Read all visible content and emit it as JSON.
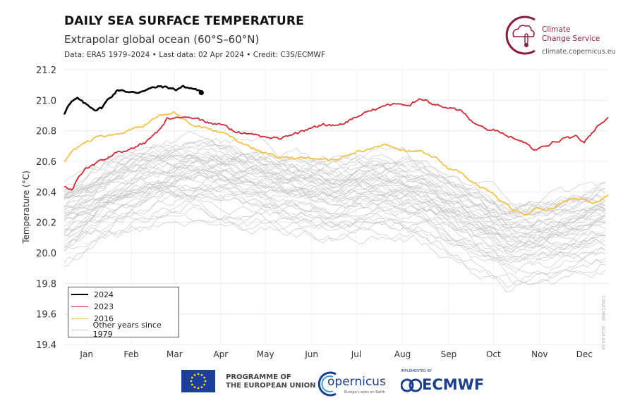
{
  "header": {
    "title": "DAILY SEA SURFACE TEMPERATURE",
    "subtitle": "Extrapolar global ocean (60°S–60°N)",
    "meta": "Data: ERA5 1979–2024 • Last data: 02 Apr 2024 • Credit: C3S/ECMWF"
  },
  "brand": {
    "name_line1": "Climate",
    "name_line2": "Change Service",
    "url": "climate.copernicus.eu"
  },
  "footer": {
    "eu_line1": "PROGRAMME OF",
    "eu_line2": "THE EUROPEAN UNION",
    "copernicus": "opernicus",
    "copernicus_tag": "Europe's eyes on Earth",
    "ecmwf_small": "IMPLEMENTED BY",
    "ecmwf": "ECMWF"
  },
  "side_note": "C3S/ECMWF · 2024-04-04",
  "chart_data": {
    "type": "line",
    "ylabel": "Temperature (°C)",
    "xlabel": "",
    "ylim": [
      19.4,
      21.2
    ],
    "yticks": [
      19.4,
      19.6,
      19.8,
      20.0,
      20.2,
      20.4,
      20.6,
      20.8,
      21.0,
      21.2
    ],
    "xlim": [
      1,
      366
    ],
    "months": [
      {
        "label": "Jan",
        "day": 16
      },
      {
        "label": "Feb",
        "day": 46
      },
      {
        "label": "Mar",
        "day": 75
      },
      {
        "label": "Apr",
        "day": 106
      },
      {
        "label": "May",
        "day": 136
      },
      {
        "label": "Jun",
        "day": 167
      },
      {
        "label": "Jul",
        "day": 197
      },
      {
        "label": "Aug",
        "day": 228
      },
      {
        "label": "Sep",
        "day": 259
      },
      {
        "label": "Oct",
        "day": 289
      },
      {
        "label": "Nov",
        "day": 320
      },
      {
        "label": "Dec",
        "day": 350
      }
    ],
    "grid": true,
    "legend_position": "bottom-left",
    "series": [
      {
        "name": "2024",
        "color": "#000000",
        "width": 2.6,
        "x": [
          1,
          3,
          6,
          10,
          14,
          18,
          22,
          26,
          30,
          33,
          36,
          40,
          45,
          50,
          55,
          60,
          66,
          72,
          76,
          80,
          85,
          90,
          93
        ],
        "y": [
          20.91,
          20.96,
          20.99,
          21.01,
          20.98,
          20.96,
          20.94,
          20.95,
          21.0,
          21.03,
          21.06,
          21.07,
          21.05,
          21.05,
          21.07,
          21.08,
          21.09,
          21.08,
          21.07,
          21.09,
          21.08,
          21.07,
          21.05
        ]
      },
      {
        "name": "2023",
        "color": "#cc2a36",
        "width": 1.8,
        "x": [
          1,
          6,
          15,
          25,
          35,
          45,
          55,
          65,
          70,
          78,
          85,
          95,
          105,
          115,
          125,
          135,
          145,
          155,
          165,
          175,
          185,
          195,
          205,
          215,
          225,
          233,
          240,
          250,
          258,
          268,
          275,
          285,
          292,
          300,
          308,
          316,
          323,
          330,
          338,
          345,
          350,
          358,
          366
        ],
        "y": [
          20.43,
          20.42,
          20.55,
          20.6,
          20.65,
          20.68,
          20.72,
          20.8,
          20.88,
          20.88,
          20.89,
          20.86,
          20.84,
          20.8,
          20.78,
          20.76,
          20.75,
          20.78,
          20.81,
          20.84,
          20.83,
          20.88,
          20.93,
          20.96,
          20.98,
          20.97,
          21.01,
          20.97,
          20.95,
          20.93,
          20.86,
          20.81,
          20.8,
          20.76,
          20.73,
          20.68,
          20.7,
          20.73,
          20.75,
          20.76,
          20.73,
          20.82,
          20.88
        ]
      },
      {
        "name": "2016",
        "color": "#f5c14b",
        "width": 1.8,
        "x": [
          1,
          6,
          14,
          22,
          30,
          38,
          45,
          52,
          60,
          66,
          70,
          75,
          80,
          87,
          95,
          105,
          115,
          125,
          135,
          145,
          155,
          165,
          175,
          185,
          195,
          205,
          215,
          222,
          230,
          240,
          250,
          258,
          265,
          272,
          280,
          288,
          295,
          303,
          310,
          318,
          325,
          333,
          340,
          348,
          355,
          361,
          366
        ],
        "y": [
          20.6,
          20.66,
          20.72,
          20.75,
          20.77,
          20.78,
          20.8,
          20.82,
          20.87,
          20.91,
          20.9,
          20.92,
          20.89,
          20.84,
          20.82,
          20.79,
          20.75,
          20.7,
          20.66,
          20.63,
          20.62,
          20.62,
          20.61,
          20.62,
          20.66,
          20.68,
          20.71,
          20.7,
          20.67,
          20.67,
          20.62,
          20.56,
          20.54,
          20.48,
          20.43,
          20.39,
          20.33,
          20.28,
          20.25,
          20.29,
          20.28,
          20.32,
          20.35,
          20.36,
          20.33,
          20.34,
          20.38
        ]
      },
      {
        "name": "Other years since 1979",
        "color": "#c7c7c7",
        "width": 0.8,
        "x": [
          1,
          30,
          60,
          90,
          120,
          150,
          180,
          210,
          240,
          270,
          300,
          330,
          366
        ],
        "y": [
          20.2,
          20.34,
          20.44,
          20.48,
          20.44,
          20.38,
          20.34,
          20.36,
          20.33,
          20.2,
          20.06,
          20.09,
          20.18
        ]
      }
    ],
    "other_years": {
      "count": 44,
      "base_x": [
        1,
        30,
        60,
        90,
        120,
        150,
        180,
        210,
        240,
        270,
        300,
        330,
        366
      ],
      "base_y": [
        20.2,
        20.34,
        20.44,
        20.48,
        20.44,
        20.38,
        20.34,
        20.36,
        20.33,
        20.2,
        20.06,
        20.09,
        20.18
      ]
    }
  }
}
